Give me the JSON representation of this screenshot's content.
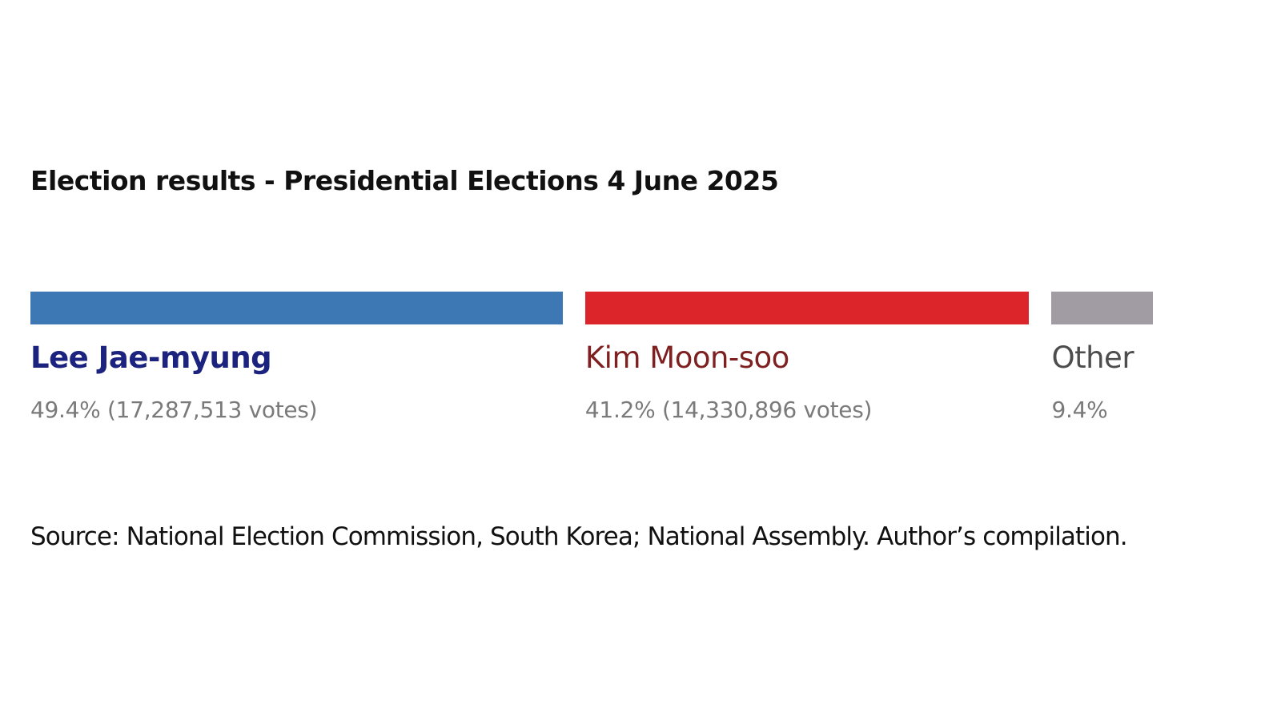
{
  "chart_data": {
    "type": "bar",
    "orientation": "horizontal-stacked",
    "title": "Election results - Presidential Elections 4 June 2025",
    "source": "Source: National Election Commission, South Korea; National Assembly. Author’s compilation.",
    "series": [
      {
        "name": "Lee Jae-myung",
        "percent": 49.4,
        "value_label": "49.4% (17,287,513 votes)",
        "bar_color": "#3d78b4",
        "name_color": "#1b237f",
        "name_weight": "bold"
      },
      {
        "name": "Kim Moon-soo",
        "percent": 41.2,
        "value_label": "41.2% (14,330,896 votes)",
        "bar_color": "#dc252b",
        "name_color": "#7e1f20",
        "name_weight": "normal"
      },
      {
        "name": "Other",
        "percent": 9.4,
        "value_label": "9.4%",
        "bar_color": "#a19ca3",
        "name_color": "#4d4d4d",
        "name_weight": "normal"
      }
    ]
  }
}
